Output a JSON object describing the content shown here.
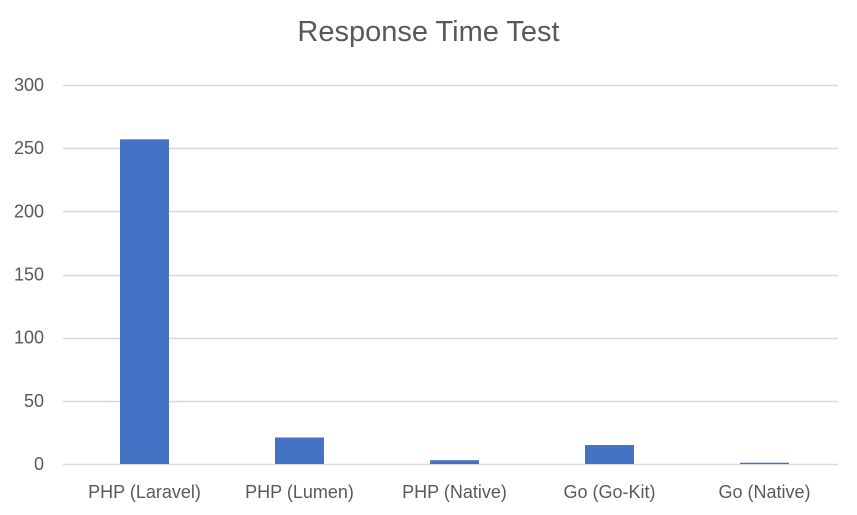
{
  "chart_data": {
    "type": "bar",
    "title": "Response Time Test",
    "xlabel": "",
    "ylabel": "",
    "categories": [
      "PHP (Laravel)",
      "PHP (Lumen)",
      "PHP (Native)",
      "Go (Go-Kit)",
      "Go (Native)"
    ],
    "values": [
      257,
      21,
      3,
      15,
      1
    ],
    "ylim": [
      0,
      300
    ],
    "yticks": [
      0,
      50,
      100,
      150,
      200,
      250,
      300
    ],
    "grid": true,
    "legend": "none",
    "colors": {
      "bar": "#4472c4",
      "grid": "#d9d9d9",
      "text": "#595959"
    }
  }
}
